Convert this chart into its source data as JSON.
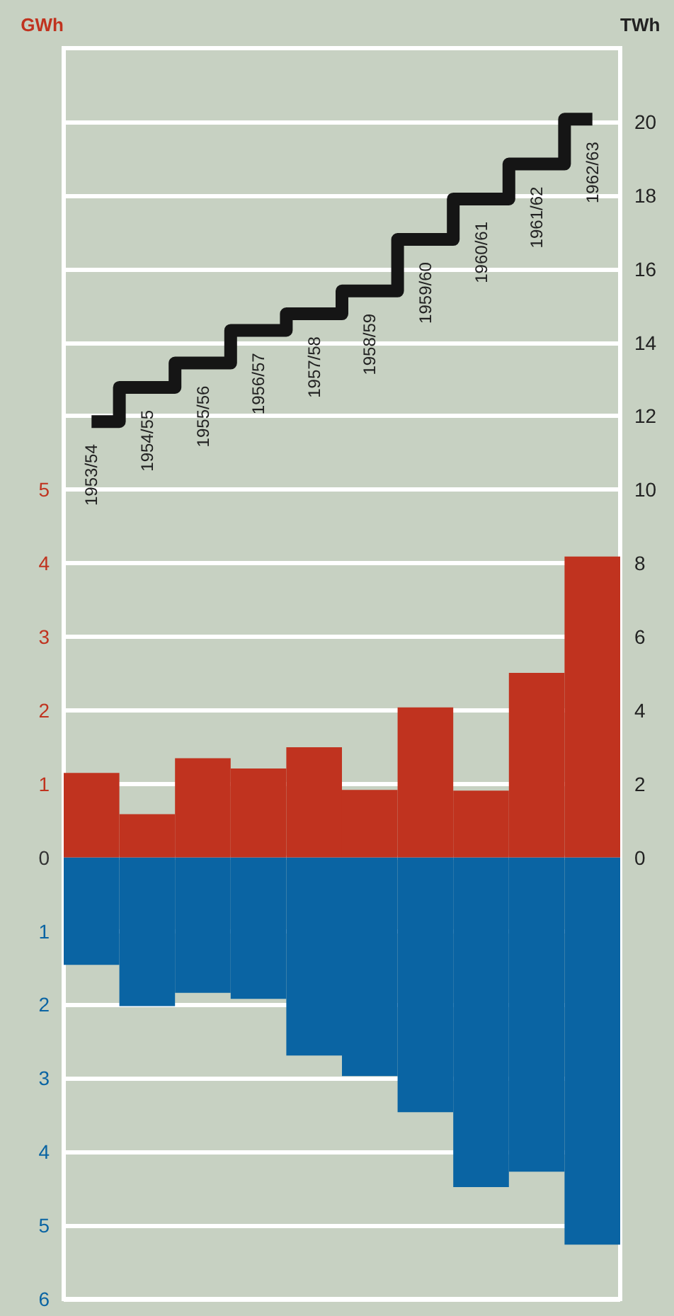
{
  "chart_data": {
    "type": "bar",
    "ylabel": "GWh",
    "y2label": "TWh",
    "categories": [
      "1953/54",
      "1954/55",
      "1955/56",
      "1956/57",
      "1957/58",
      "1958/59",
      "1959/60",
      "1960/61",
      "1961/62",
      "1962/63"
    ],
    "series": [
      {
        "color": "#c0331f",
        "values": [
          1.15,
          0.59,
          1.35,
          1.21,
          1.5,
          0.92,
          2.04,
          0.91,
          2.51,
          4.09
        ]
      },
      {
        "color": "#0a64a3",
        "values": [
          -1.46,
          -2.02,
          -1.84,
          -1.92,
          -2.69,
          -2.97,
          -3.46,
          -4.48,
          -4.27,
          -5.26
        ]
      },
      {
        "type": "step",
        "axis": "y2",
        "color": "#151515",
        "values": [
          11.85,
          12.78,
          13.44,
          14.33,
          14.78,
          15.4,
          16.8,
          17.9,
          18.85,
          20.07
        ]
      }
    ],
    "ylim": [
      -6,
      11
    ],
    "yticks": [
      {
        "value": -6,
        "label": "6"
      },
      {
        "value": -5,
        "label": "5"
      },
      {
        "value": -4,
        "label": "4"
      },
      {
        "value": -3,
        "label": "3"
      },
      {
        "value": -2,
        "label": "2"
      },
      {
        "value": -1,
        "label": "1"
      },
      0,
      1,
      2,
      3,
      4,
      5
    ],
    "y2lim": [
      -12,
      22
    ],
    "y2ticks": [
      0,
      2,
      4,
      6,
      8,
      10,
      12,
      14,
      16,
      18,
      20
    ],
    "stacked": true,
    "grid": "y"
  }
}
